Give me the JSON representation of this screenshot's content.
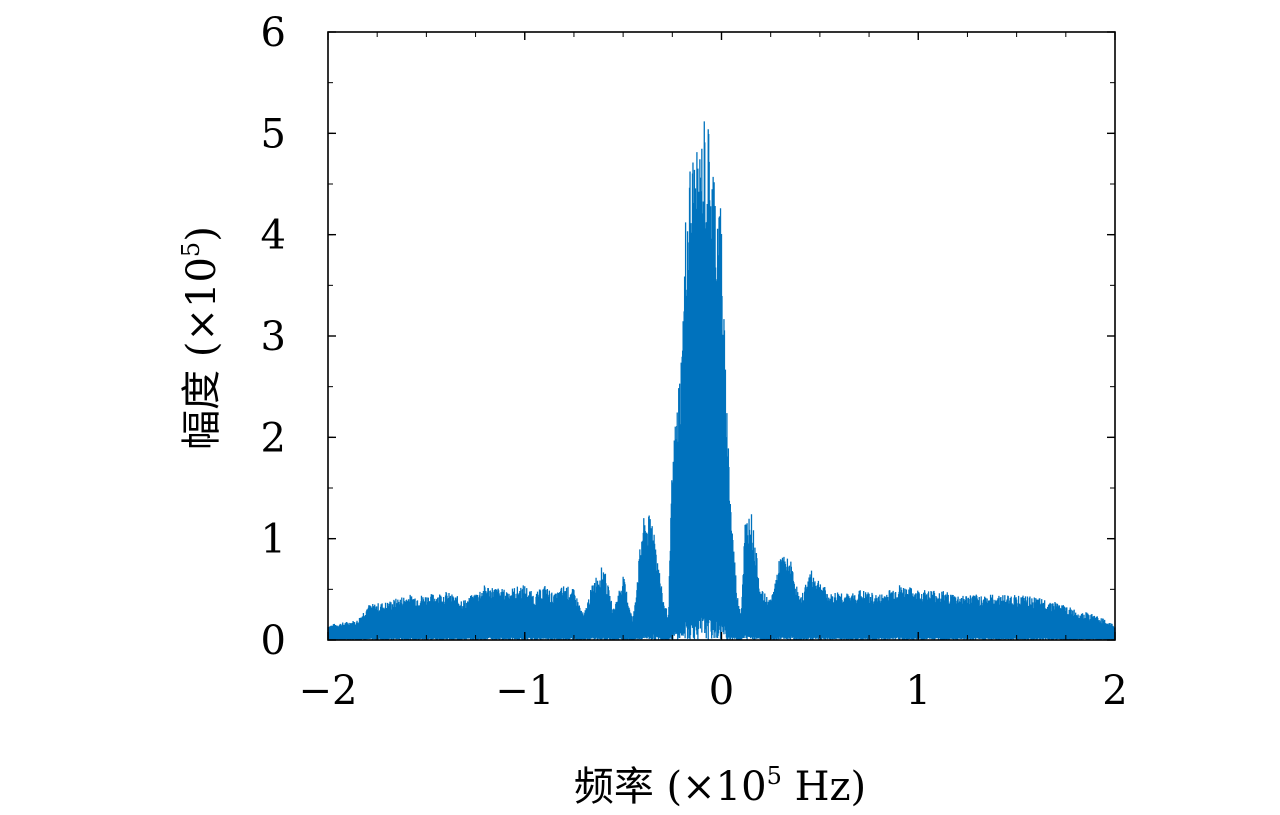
{
  "chart_data": {
    "type": "line",
    "title": "",
    "xlabel": {
      "prefix": "频率 (×10",
      "exp": "5",
      "suffix": " Hz)"
    },
    "ylabel": {
      "prefix": "幅度 (×10",
      "exp": "5",
      "suffix": ")"
    },
    "xlim": [
      -2,
      2
    ],
    "ylim": [
      0,
      6
    ],
    "x_ticks": [
      -2,
      -1,
      0,
      1,
      2
    ],
    "x_tick_labels": [
      "−2",
      "−1",
      "0",
      "1",
      "2"
    ],
    "y_ticks": [
      0,
      1,
      2,
      3,
      4,
      5,
      6
    ],
    "y_tick_labels": [
      "0",
      "1",
      "2",
      "3",
      "4",
      "5",
      "6"
    ],
    "grid": false,
    "legend": "none",
    "series": [
      {
        "color": "#0072bd",
        "x": [
          -2.0,
          -1.85,
          -1.8,
          -1.7,
          -1.6,
          -1.5,
          -1.4,
          -1.3,
          -1.2,
          -1.1,
          -1.0,
          -0.95,
          -0.9,
          -0.85,
          -0.8,
          -0.75,
          -0.7,
          -0.65,
          -0.6,
          -0.55,
          -0.5,
          -0.45,
          -0.4,
          -0.35,
          -0.3,
          -0.27,
          -0.25,
          -0.2,
          -0.18,
          -0.15,
          -0.12,
          -0.1,
          -0.08,
          -0.05,
          -0.02,
          0.0,
          0.02,
          0.05,
          0.08,
          0.1,
          0.12,
          0.15,
          0.2,
          0.25,
          0.3,
          0.35,
          0.4,
          0.45,
          0.5,
          0.55,
          0.6,
          0.65,
          0.7,
          0.8,
          0.9,
          1.0,
          1.1,
          1.2,
          1.3,
          1.4,
          1.5,
          1.6,
          1.7,
          1.8,
          1.9,
          1.95,
          2.0
        ],
        "envelope": [
          0.15,
          0.2,
          0.35,
          0.38,
          0.45,
          0.45,
          0.48,
          0.4,
          0.55,
          0.5,
          0.55,
          0.45,
          0.55,
          0.45,
          0.55,
          0.5,
          0.25,
          0.6,
          0.75,
          0.3,
          0.65,
          0.2,
          1.2,
          1.25,
          0.45,
          0.25,
          1.8,
          3.0,
          4.4,
          4.9,
          4.8,
          5.05,
          5.3,
          4.9,
          4.5,
          4.3,
          2.7,
          1.3,
          0.45,
          0.3,
          1.2,
          1.3,
          0.5,
          0.4,
          0.85,
          0.8,
          0.4,
          0.7,
          0.6,
          0.45,
          0.5,
          0.45,
          0.5,
          0.45,
          0.55,
          0.5,
          0.5,
          0.45,
          0.45,
          0.45,
          0.45,
          0.42,
          0.38,
          0.3,
          0.25,
          0.2,
          0.15
        ]
      }
    ]
  }
}
